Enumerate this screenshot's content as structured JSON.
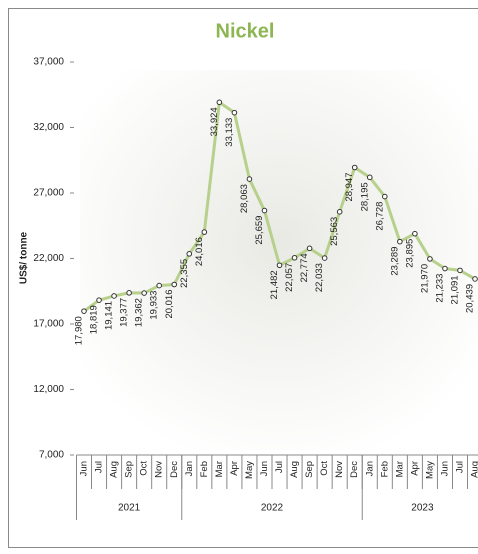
{
  "chart_data": {
    "type": "line",
    "title": "Nickel",
    "y_label": "US$/ tonne",
    "groups": [
      {
        "label": "2021",
        "categories": [
          "Jun",
          "Jul",
          "Aug",
          "Sep",
          "Oct",
          "Nov",
          "Dec"
        ]
      },
      {
        "label": "2022",
        "categories": [
          "Jan",
          "Feb",
          "Mar",
          "Apr",
          "May",
          "Jun",
          "Jul",
          "Aug",
          "Sep",
          "Oct",
          "Nov",
          "Dec"
        ]
      },
      {
        "label": "2023",
        "categories": [
          "Jan",
          "Feb",
          "Mar",
          "Apr",
          "May",
          "Jun",
          "Jul",
          "Aug"
        ]
      }
    ],
    "values": [
      17980,
      18819,
      19141,
      19377,
      19362,
      19933,
      20016,
      22355,
      24016,
      33924,
      33133,
      28063,
      25659,
      21482,
      22057,
      22774,
      22033,
      25563,
      28947,
      28195,
      26728,
      23289,
      23895,
      21970,
      21233,
      21091,
      20439
    ],
    "value_labels": [
      "17,980",
      "18,819",
      "19,141",
      "19,377",
      "19,362",
      "19,933",
      "20,016",
      "22,355",
      "24,016",
      "33,924",
      "33,133",
      "28,063",
      "25,659",
      "21,482",
      "22,057",
      "22,774",
      "22,033",
      "25,563",
      "28,947",
      "28,195",
      "26,728",
      "23,289",
      "23,895",
      "21,970",
      "21,233",
      "21,091",
      "20,439"
    ],
    "color": "#b7d08c",
    "title_color": "#8db653",
    "ylim": [
      7000,
      37000
    ],
    "yticks": [
      {
        "value": 7000,
        "label": "7,000"
      },
      {
        "value": 12000,
        "label": "12,000"
      },
      {
        "value": 17000,
        "label": "17,000"
      },
      {
        "value": 22000,
        "label": "22,000"
      },
      {
        "value": 27000,
        "label": "27,000"
      },
      {
        "value": 32000,
        "label": "32,000"
      },
      {
        "value": 37000,
        "label": "37,000"
      }
    ]
  }
}
